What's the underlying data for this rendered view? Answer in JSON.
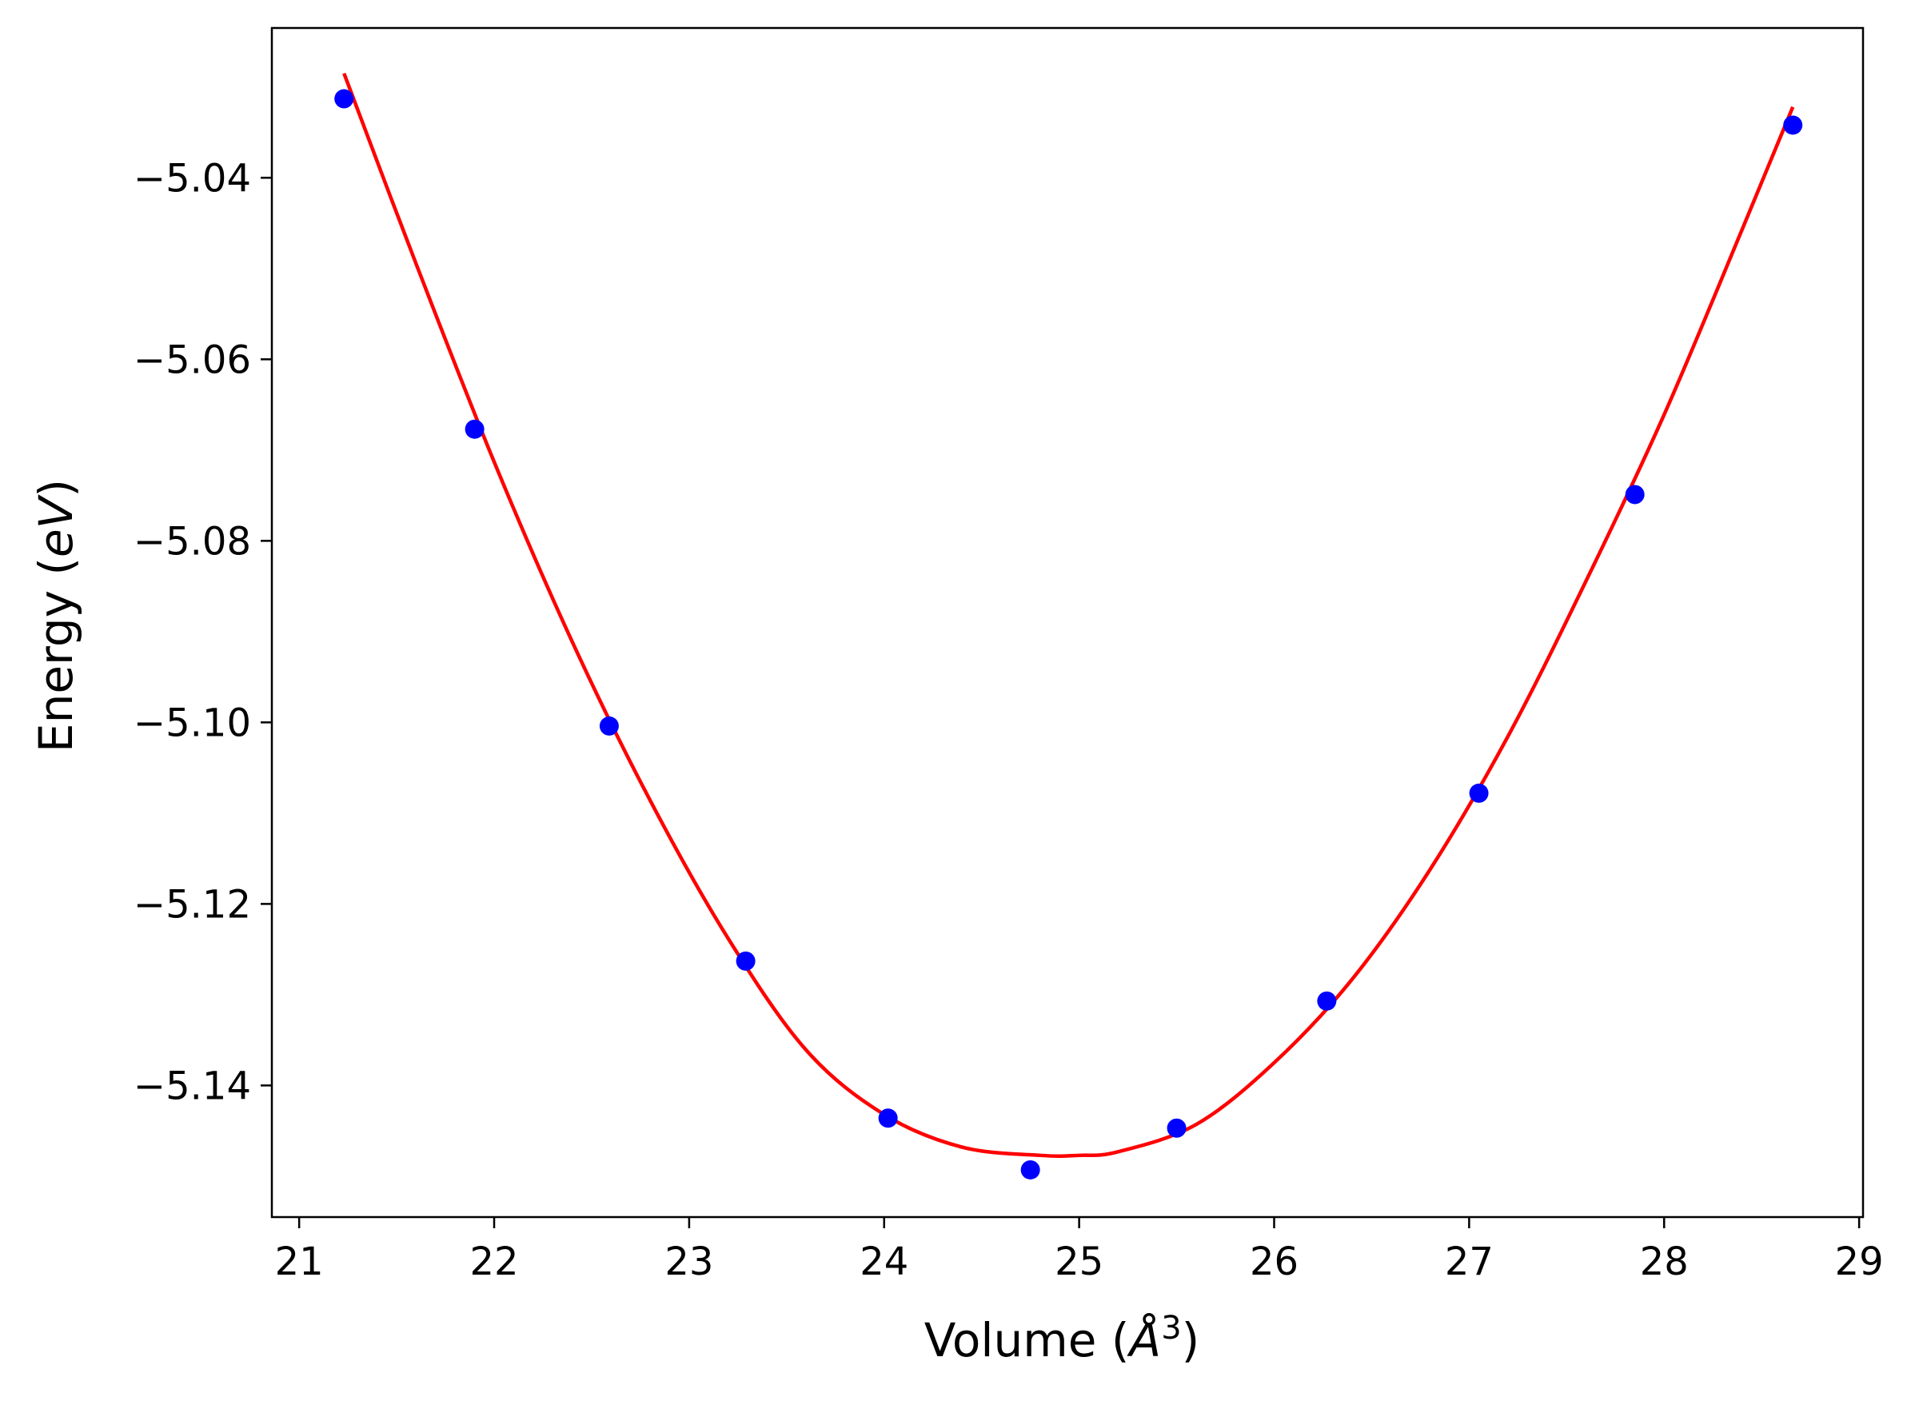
{
  "chart_data": {
    "type": "scatter",
    "title": "",
    "xlabel": "Volume",
    "xlabel_math": "Å",
    "xlabel_sup": "3",
    "ylabel": "Energy",
    "ylabel_math": "eV",
    "xlim": [
      20.86,
      29.02
    ],
    "ylim": [
      -5.1545,
      -5.0235
    ],
    "xticks": [
      21,
      22,
      23,
      24,
      25,
      26,
      27,
      28,
      29
    ],
    "xtick_labels": [
      "21",
      "22",
      "23",
      "24",
      "25",
      "26",
      "27",
      "28",
      "29"
    ],
    "yticks": [
      -5.14,
      -5.12,
      -5.1,
      -5.08,
      -5.06,
      -5.04
    ],
    "ytick_labels": [
      "−5.14",
      "−5.12",
      "−5.10",
      "−5.08",
      "−5.06",
      "−5.04"
    ],
    "grid": false,
    "series": [
      {
        "kind": "points",
        "color": "#0000ff",
        "x": [
          21.23,
          21.9,
          22.59,
          23.29,
          24.02,
          24.75,
          25.5,
          26.27,
          27.05,
          27.85,
          28.66
        ],
        "y": [
          -5.0313,
          -5.0677,
          -5.1004,
          -5.1263,
          -5.1436,
          -5.1493,
          -5.1447,
          -5.1307,
          -5.1078,
          -5.0749,
          -5.0342
        ]
      },
      {
        "kind": "fit-curve",
        "color": "#ff0000",
        "x": [
          21.23,
          21.6,
          22.0,
          22.4,
          22.8,
          23.2,
          23.6,
          24.0,
          24.4,
          24.8,
          25.0,
          25.2,
          25.6,
          26.0,
          26.4,
          26.8,
          27.2,
          27.6,
          28.0,
          28.4,
          28.66
        ],
        "y": [
          -5.0285,
          -5.0495,
          -5.0713,
          -5.0911,
          -5.1086,
          -5.1238,
          -5.1361,
          -5.1432,
          -5.1468,
          -5.1477,
          -5.1477,
          -5.1473,
          -5.1443,
          -5.1375,
          -5.1283,
          -5.1162,
          -5.1015,
          -5.0844,
          -5.0661,
          -5.0457,
          -5.0322
        ]
      }
    ]
  }
}
